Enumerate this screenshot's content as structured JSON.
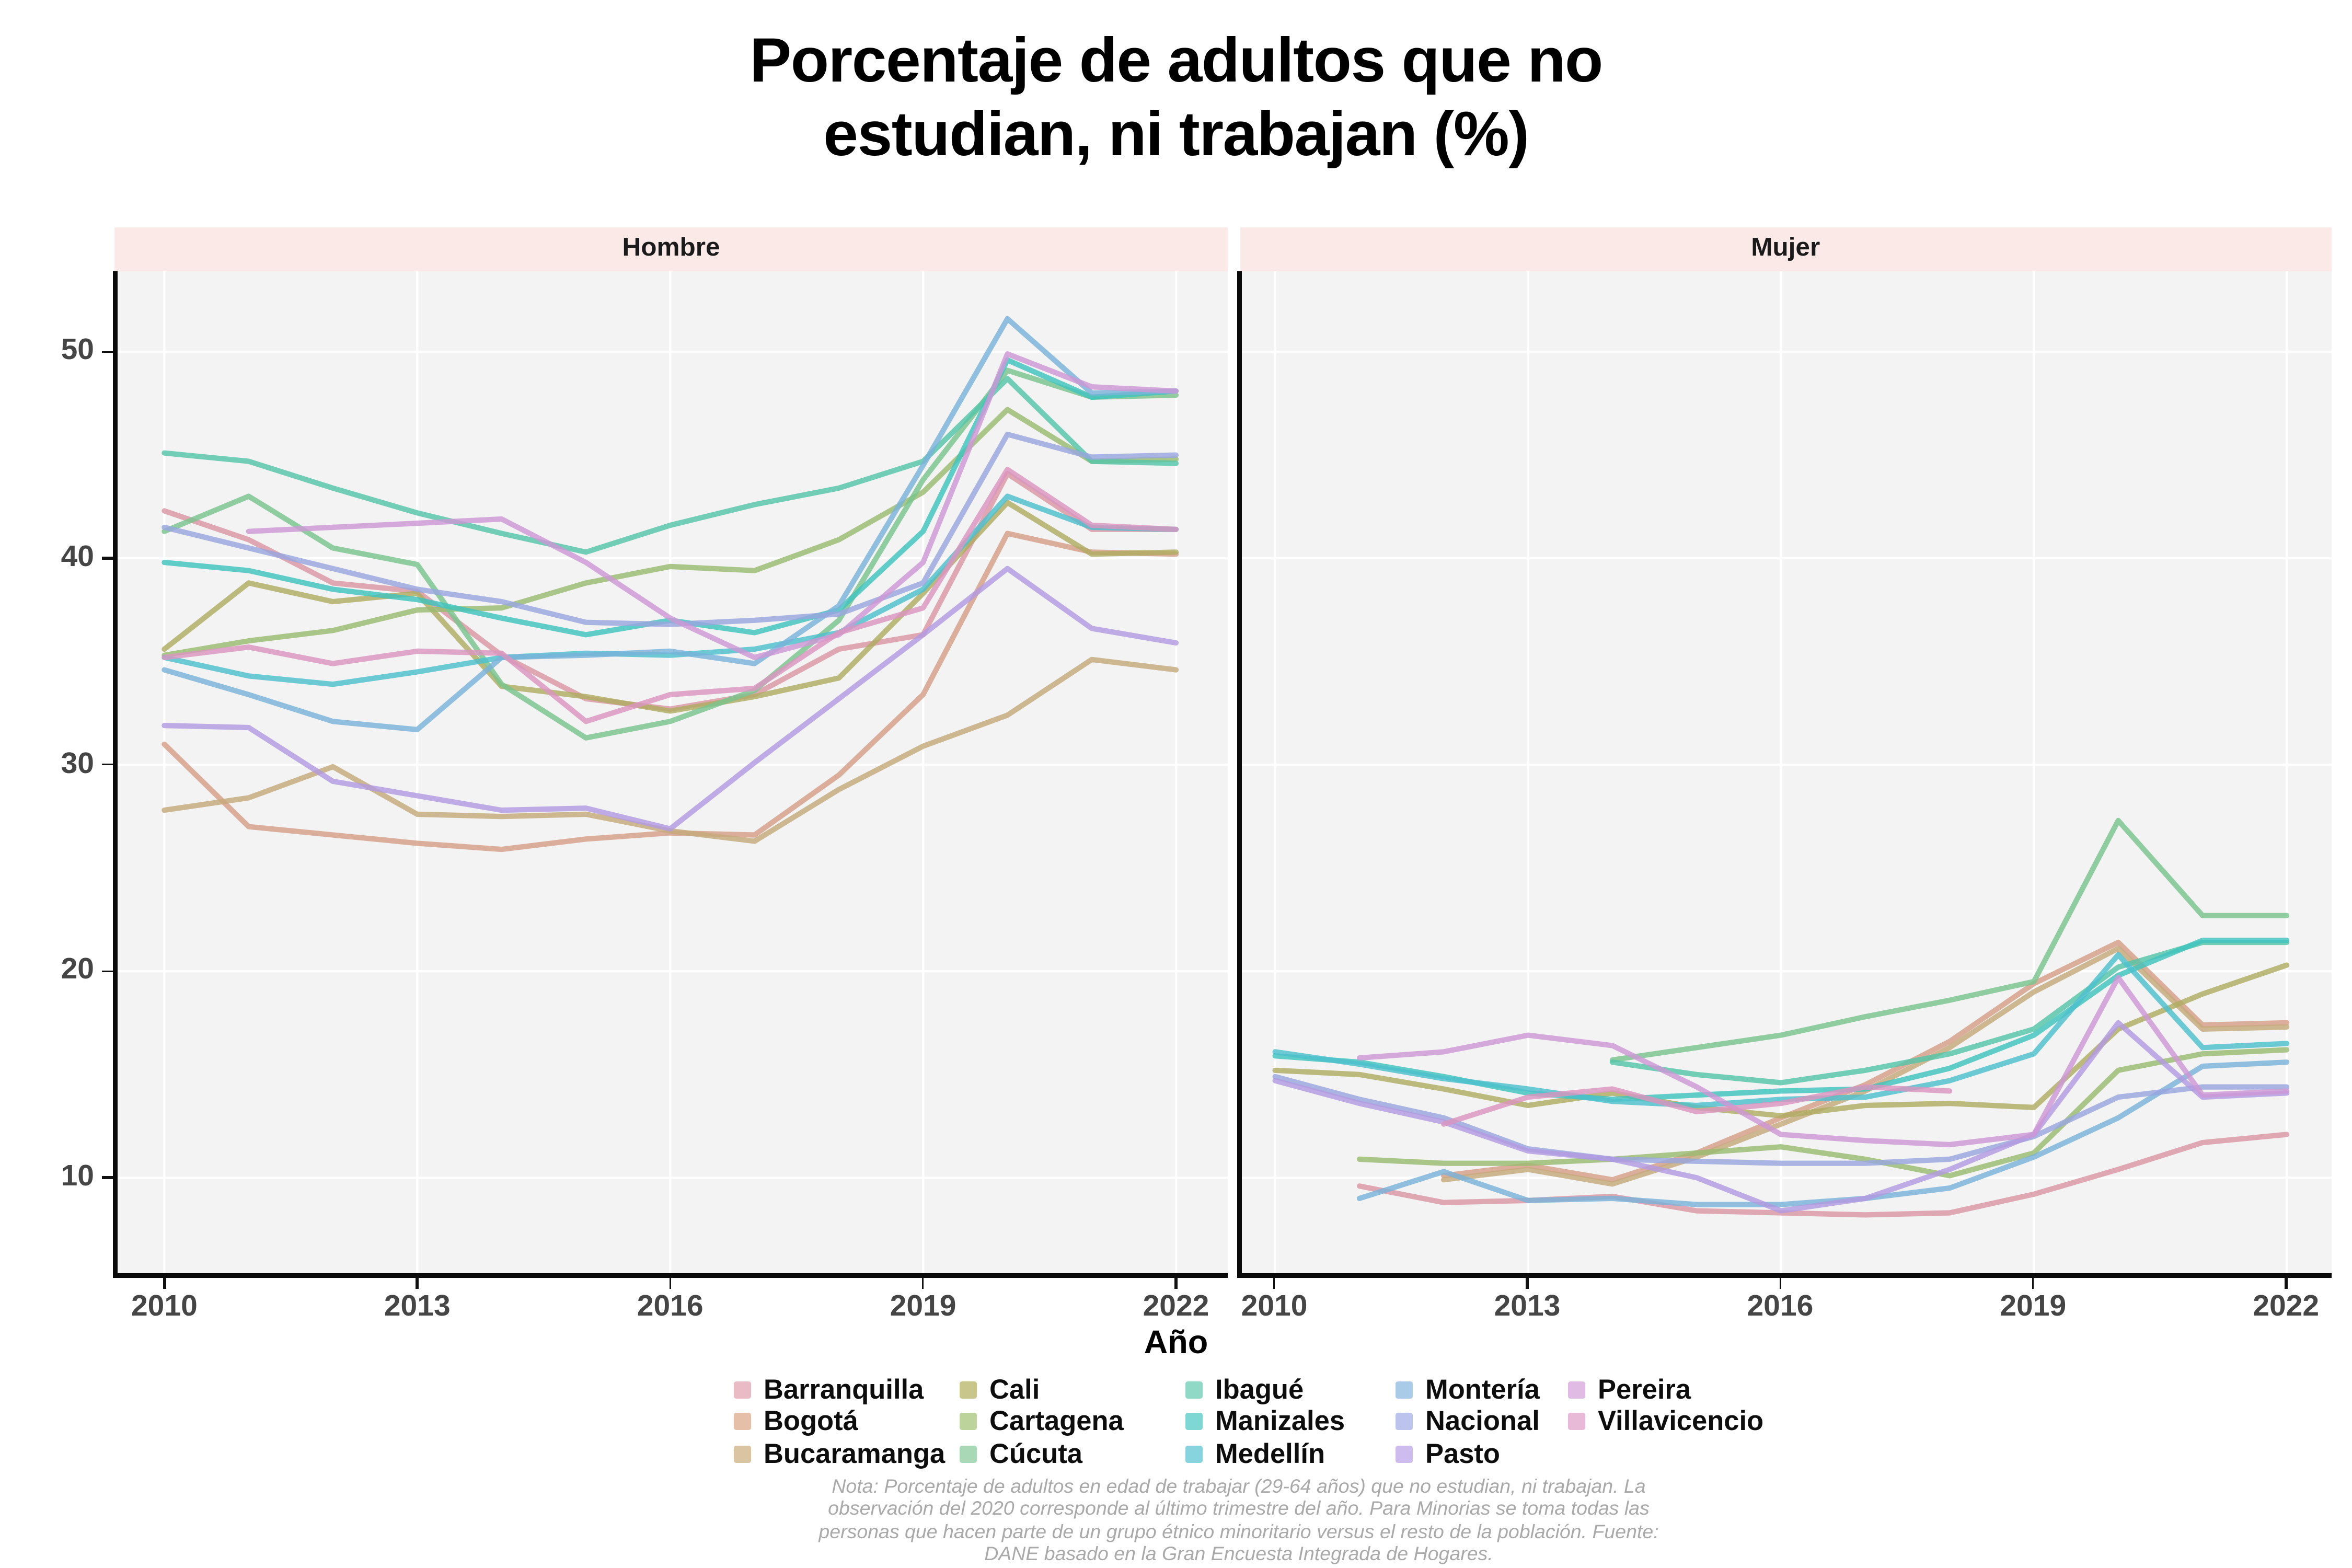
{
  "title": {
    "line1": "Porcentaje de adultos que no",
    "line2": "estudian, ni trabajan (%)"
  },
  "x_axis_title": "Año",
  "y_axis_title": "(%)",
  "note": {
    "lines": [
      "Nota: Porcentaje de adultos en edad de trabajar (29-64 años) que no estudian, ni trabajan. La",
      "observación del 2020 corresponde al último trimestre del año. Para Minorias se toma todas las",
      "personas que hacen parte de un grupo étnico minoritario versus el resto de la población. Fuente:",
      "DANE basado en la Gran Encuesta Integrada de Hogares."
    ]
  },
  "colors": {
    "strip_background": "#fbe9e8",
    "panel_background": "#f3f3f3",
    "gridline": "#ffffff",
    "axis_line": "#0a0a0a",
    "tick_text": "#454545",
    "note_text": "#a9a9a9"
  },
  "legend": {
    "columns": [
      [
        "Barranquilla",
        "Bogotá",
        "Bucaramanga"
      ],
      [
        "Cali",
        "Cartagena",
        "Cúcuta"
      ],
      [
        "Ibagué",
        "Manizales",
        "Medellín"
      ],
      [
        "Montería",
        "Nacional",
        "Pasto"
      ],
      [
        "Pereira",
        "Villavicencio"
      ]
    ]
  },
  "chart_data": {
    "type": "line",
    "title": "Porcentaje de adultos que no estudian, ni trabajan (%)",
    "xlabel": "Año",
    "ylabel": "(%)",
    "x": [
      2010,
      2011,
      2012,
      2013,
      2014,
      2015,
      2016,
      2017,
      2018,
      2019,
      2020,
      2021,
      2022
    ],
    "x_ticks": [
      2010,
      2013,
      2016,
      2019,
      2022
    ],
    "y_ticks": [
      10,
      20,
      30,
      40,
      50
    ],
    "ylim": [
      5.3,
      53.9
    ],
    "grid": "major",
    "legend_position": "bottom",
    "series_colors": {
      "Barranquilla": {
        "line": "#da96a3",
        "legend": "#e9bcc5"
      },
      "Bogotá": {
        "line": "#d69e87",
        "legend": "#e6bfa9"
      },
      "Bucaramanga": {
        "line": "#c5a97b",
        "legend": "#d9c5a2"
      },
      "Cali": {
        "line": "#afac62",
        "legend": "#c9c68c"
      },
      "Cartagena": {
        "line": "#9abb70",
        "legend": "#bcd39c"
      },
      "Cúcuta": {
        "line": "#79c48e",
        "legend": "#a8d8b5"
      },
      "Ibagué": {
        "line": "#54c5a8",
        "legend": "#8fd9c6"
      },
      "Manizales": {
        "line": "#3fc3bd",
        "legend": "#7ed7d3"
      },
      "Medellín": {
        "line": "#4dbfcd",
        "legend": "#87d3de"
      },
      "Montería": {
        "line": "#79b2d9",
        "legend": "#aacbe7"
      },
      "Nacional": {
        "line": "#98a6df",
        "legend": "#bcc3ec"
      },
      "Pasto": {
        "line": "#b29ae1",
        "legend": "#cfbcee"
      },
      "Pereira": {
        "line": "#cd97d6",
        "legend": "#e0bce4"
      },
      "Villavicencio": {
        "line": "#da95bf",
        "legend": "#e9bad7"
      }
    },
    "facets": [
      {
        "label": "Hombre",
        "series": [
          {
            "name": "Barranquilla",
            "values": [
              42.3,
              40.9,
              38.8,
              38.4,
              35.3,
              33.2,
              32.7,
              33.4,
              35.6,
              36.3,
              44.1,
              41.4,
              41.4
            ]
          },
          {
            "name": "Bogotá",
            "values": [
              31.0,
              27.0,
              26.6,
              26.2,
              25.9,
              26.4,
              26.7,
              26.6,
              29.5,
              33.4,
              41.2,
              40.3,
              40.2
            ]
          },
          {
            "name": "Bucaramanga",
            "values": [
              27.8,
              28.4,
              29.9,
              27.6,
              27.5,
              27.6,
              26.8,
              26.3,
              28.8,
              30.9,
              32.4,
              35.1,
              34.6
            ]
          },
          {
            "name": "Cali",
            "values": [
              35.6,
              38.8,
              37.9,
              38.3,
              33.8,
              33.3,
              32.6,
              33.3,
              34.2,
              38.3,
              42.7,
              40.2,
              40.3
            ]
          },
          {
            "name": "Cartagena",
            "values": [
              35.3,
              36.0,
              36.5,
              37.5,
              37.6,
              38.8,
              39.6,
              39.4,
              40.9,
              43.2,
              47.2,
              44.7,
              44.8
            ]
          },
          {
            "name": "Cúcuta",
            "values": [
              41.3,
              43.0,
              40.5,
              39.7,
              33.9,
              31.3,
              32.1,
              33.6,
              37.0,
              43.8,
              49.1,
              47.8,
              47.9
            ]
          },
          {
            "name": "Ibagué",
            "values": [
              45.1,
              44.7,
              43.4,
              42.2,
              41.2,
              40.3,
              41.6,
              42.6,
              43.4,
              44.7,
              48.7,
              44.7,
              44.6
            ]
          },
          {
            "name": "Manizales",
            "values": [
              39.8,
              39.4,
              38.5,
              38.0,
              37.1,
              36.3,
              37.0,
              36.4,
              37.5,
              41.3,
              49.6,
              47.8,
              48.1
            ]
          },
          {
            "name": "Medellín",
            "values": [
              35.2,
              34.3,
              33.9,
              34.5,
              35.2,
              35.4,
              35.3,
              35.6,
              36.4,
              38.5,
              43.0,
              41.5,
              41.4
            ]
          },
          {
            "name": "Montería",
            "values": [
              34.6,
              33.4,
              32.1,
              31.7,
              35.2,
              35.3,
              35.5,
              34.9,
              37.7,
              44.5,
              51.6,
              48.0,
              48.1
            ]
          },
          {
            "name": "Nacional",
            "values": [
              41.5,
              40.5,
              39.5,
              38.5,
              37.9,
              36.9,
              36.8,
              37.0,
              37.3,
              38.8,
              46.0,
              44.9,
              45.0
            ]
          },
          {
            "name": "Pasto",
            "values": [
              31.9,
              31.8,
              29.2,
              28.5,
              27.8,
              27.9,
              26.9,
              30.1,
              33.2,
              36.3,
              39.5,
              36.6,
              35.9
            ]
          },
          {
            "name": "Pereira",
            "values": [
              null,
              41.3,
              41.5,
              41.7,
              41.9,
              39.8,
              37.1,
              35.2,
              36.3,
              39.8,
              49.9,
              48.3,
              48.1
            ]
          },
          {
            "name": "Villavicencio",
            "values": [
              35.2,
              35.7,
              34.9,
              35.5,
              35.4,
              32.1,
              33.4,
              33.7,
              36.4,
              37.6,
              44.3,
              41.6,
              41.4
            ]
          }
        ]
      },
      {
        "label": "Mujer",
        "series": [
          {
            "name": "Barranquilla",
            "values": [
              null,
              9.6,
              8.8,
              8.9,
              9.1,
              8.4,
              8.3,
              8.2,
              8.3,
              9.2,
              10.4,
              11.7,
              12.1
            ]
          },
          {
            "name": "Bogotá",
            "values": [
              null,
              null,
              10.1,
              10.6,
              9.9,
              11.2,
              12.9,
              14.5,
              16.6,
              19.4,
              21.4,
              17.4,
              17.5
            ]
          },
          {
            "name": "Bucaramanga",
            "values": [
              null,
              null,
              9.9,
              10.4,
              9.7,
              11.0,
              12.6,
              14.2,
              16.3,
              19.0,
              21.1,
              17.2,
              17.3
            ]
          },
          {
            "name": "Cali",
            "values": [
              15.2,
              15.0,
              14.3,
              13.5,
              14.1,
              13.4,
              13.0,
              13.5,
              13.6,
              13.4,
              17.2,
              18.9,
              20.3
            ]
          },
          {
            "name": "Cartagena",
            "values": [
              null,
              10.9,
              10.7,
              10.7,
              10.9,
              11.2,
              11.5,
              10.9,
              10.1,
              11.2,
              15.2,
              16.0,
              16.2
            ]
          },
          {
            "name": "Cúcuta",
            "values": [
              null,
              null,
              null,
              null,
              15.7,
              16.3,
              16.9,
              17.8,
              18.6,
              19.5,
              27.3,
              22.7,
              22.7
            ]
          },
          {
            "name": "Ibagué",
            "values": [
              null,
              null,
              null,
              null,
              15.6,
              15.0,
              14.6,
              15.2,
              16.0,
              17.2,
              20.2,
              21.4,
              21.4
            ]
          },
          {
            "name": "Manizales",
            "values": [
              15.9,
              15.6,
              14.9,
              14.1,
              13.8,
              14.0,
              14.2,
              14.3,
              15.3,
              16.9,
              19.8,
              21.5,
              21.5
            ]
          },
          {
            "name": "Medellín",
            "values": [
              16.1,
              15.5,
              14.8,
              14.3,
              13.7,
              13.5,
              13.8,
              13.9,
              14.7,
              16.0,
              20.8,
              16.3,
              16.5
            ]
          },
          {
            "name": "Montería",
            "values": [
              null,
              9.0,
              10.3,
              8.9,
              9.0,
              8.7,
              8.7,
              9.0,
              9.5,
              11.0,
              12.9,
              15.4,
              15.6
            ]
          },
          {
            "name": "Nacional",
            "values": [
              14.9,
              13.8,
              12.9,
              11.4,
              10.9,
              10.8,
              10.7,
              10.7,
              10.9,
              12.0,
              13.9,
              14.4,
              14.4
            ]
          },
          {
            "name": "Pasto",
            "values": [
              14.7,
              13.6,
              12.7,
              11.3,
              10.9,
              10.0,
              8.4,
              9.0,
              10.4,
              12.1,
              17.5,
              13.9,
              14.1
            ]
          },
          {
            "name": "Pereira",
            "values": [
              null,
              15.8,
              16.1,
              16.9,
              16.4,
              14.4,
              12.1,
              11.8,
              11.6,
              12.1,
              19.7,
              14.0,
              14.2
            ]
          },
          {
            "name": "Villavicencio",
            "values": [
              null,
              null,
              12.6,
              13.9,
              14.3,
              13.2,
              13.6,
              14.4,
              14.2,
              null,
              null,
              null,
              null
            ]
          }
        ]
      }
    ]
  }
}
